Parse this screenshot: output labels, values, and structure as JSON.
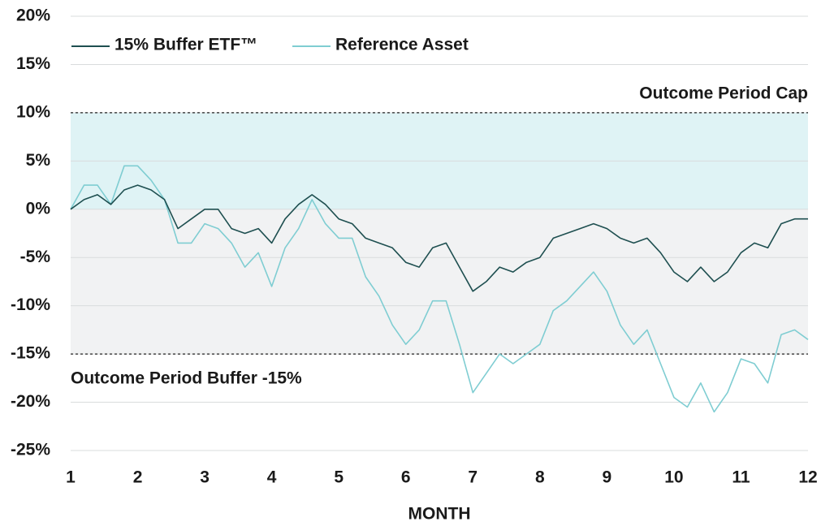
{
  "chart_data": {
    "type": "line",
    "x_label": "MONTH",
    "x": [
      1,
      1.2,
      1.4,
      1.6,
      1.8,
      2,
      2.2,
      2.4,
      2.6,
      2.8,
      3,
      3.2,
      3.4,
      3.6,
      3.8,
      4,
      4.2,
      4.4,
      4.6,
      4.8,
      5,
      5.2,
      5.4,
      5.6,
      5.8,
      6,
      6.2,
      6.4,
      6.6,
      6.8,
      7,
      7.2,
      7.4,
      7.6,
      7.8,
      8,
      8.2,
      8.4,
      8.6,
      8.8,
      9,
      9.2,
      9.4,
      9.6,
      9.8,
      10,
      10.2,
      10.4,
      10.6,
      10.8,
      11,
      11.2,
      11.4,
      11.6,
      11.8,
      12
    ],
    "series": [
      {
        "name": "15% Buffer ETF™",
        "color": "#1e4f50",
        "values": [
          0,
          1,
          1.5,
          0.5,
          2,
          2.5,
          2,
          1,
          -2,
          -1,
          0,
          0,
          -2,
          -2.5,
          -2,
          -3.5,
          -1,
          0.5,
          1.5,
          0.5,
          -1,
          -1.5,
          -3,
          -3.5,
          -4,
          -5.5,
          -6,
          -4,
          -3.5,
          -6,
          -8.5,
          -7.5,
          -6,
          -6.5,
          -5.5,
          -5,
          -3,
          -2.5,
          -2,
          -1.5,
          -2,
          -3,
          -3.5,
          -3,
          -4.5,
          -6.5,
          -7.5,
          -6,
          -7.5,
          -6.5,
          -4.5,
          -3.5,
          -4,
          -1.5,
          -1,
          -1
        ]
      },
      {
        "name": "Reference Asset",
        "color": "#7fcdd2",
        "values": [
          0,
          2.5,
          2.5,
          0.5,
          4.5,
          4.5,
          3,
          1,
          -3.5,
          -3.5,
          -1.5,
          -2,
          -3.5,
          -6,
          -4.5,
          -8,
          -4,
          -2,
          1,
          -1.5,
          -3,
          -3,
          -7,
          -9,
          -12,
          -14,
          -12.5,
          -9.5,
          -9.5,
          -14,
          -19,
          -17,
          -15,
          -16,
          -15,
          -14,
          -10.5,
          -9.5,
          -8,
          -6.5,
          -8.5,
          -12,
          -14,
          -12.5,
          -16,
          -19.5,
          -20.5,
          -18,
          -21,
          -19,
          -15.5,
          -16,
          -18,
          -13,
          -12.5,
          -13.5
        ]
      }
    ],
    "bands": [
      {
        "from": 0,
        "to": 10,
        "color": "#dff3f5"
      },
      {
        "from": -15,
        "to": 0,
        "color": "#f1f2f3"
      }
    ],
    "reference_lines": [
      {
        "value": 10,
        "label": "Outcome Period Cap"
      },
      {
        "value": -15,
        "label": "Outcome Period Buffer -15%"
      }
    ],
    "xlim": [
      1,
      12
    ],
    "xticks": [
      1,
      2,
      3,
      4,
      5,
      6,
      7,
      8,
      9,
      10,
      11,
      12
    ],
    "ylim": [
      -25,
      20
    ],
    "yticks": [
      {
        "value": -25,
        "label": "-25%"
      },
      {
        "value": -20,
        "label": "-20%"
      },
      {
        "value": -15,
        "label": "-15%"
      },
      {
        "value": -10,
        "label": "-10%"
      },
      {
        "value": -5,
        "label": "-5%"
      },
      {
        "value": 0,
        "label": "0%"
      },
      {
        "value": 5,
        "label": "5%"
      },
      {
        "value": 10,
        "label": "10%"
      },
      {
        "value": 15,
        "label": "15%"
      },
      {
        "value": 20,
        "label": "20%"
      }
    ],
    "grid": true
  }
}
